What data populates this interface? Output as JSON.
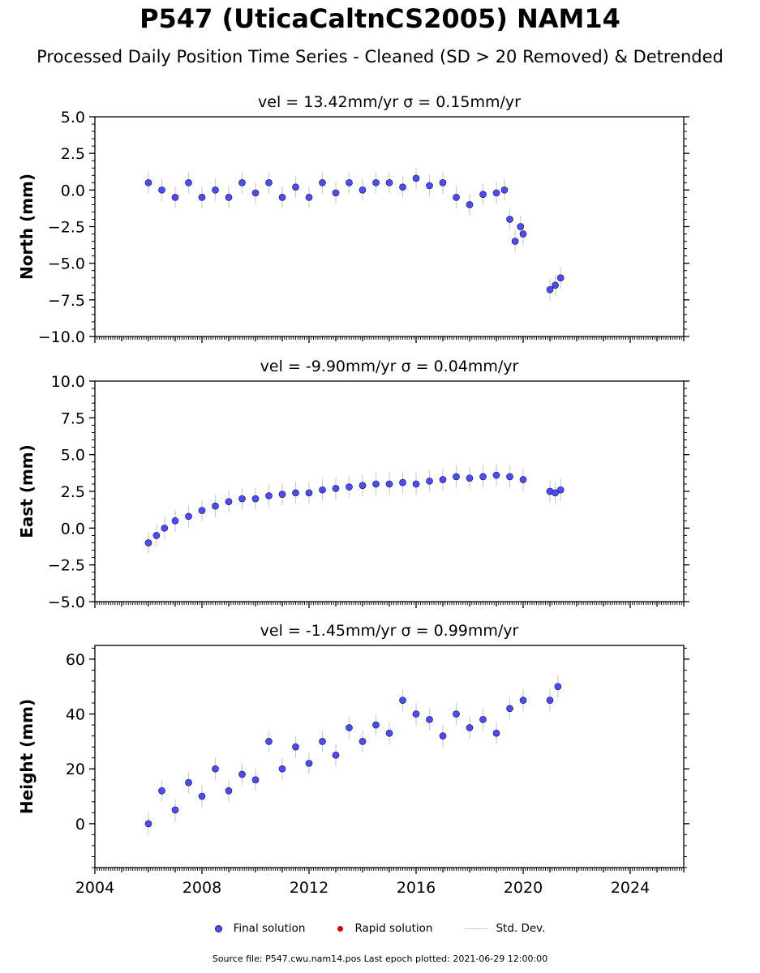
{
  "title": "P547 (UticaCaltnCS2005) NAM14",
  "subtitle": "Processed Daily Position Time Series - Cleaned (SD > 20 Removed) & Detrended",
  "legend": {
    "final": "Final solution",
    "rapid": "Rapid solution",
    "std": "Std. Dev."
  },
  "footer": "Source file: P547.cwu.nam14.pos  Last epoch plotted: 2021-06-29 12:00:00",
  "colors": {
    "final": "#4b4bff",
    "rapid": "#e00000",
    "std": "#c8c8c8"
  },
  "chart_data": [
    {
      "type": "scatter",
      "title": "vel = 13.42mm/yr   σ = 0.15mm/yr",
      "ylabel": "North (mm)",
      "xlim": [
        2004,
        2026
      ],
      "ylim": [
        -10,
        5
      ],
      "yticks": [
        5.0,
        2.5,
        0.0,
        -2.5,
        -5.0,
        -7.5,
        -10.0
      ],
      "ytick_labels": [
        "5.0",
        "2.5",
        "0.0",
        "−2.5",
        "−5.0",
        "−7.5",
        "−10.0"
      ],
      "series": [
        {
          "x": [
            2006.0,
            2006.5,
            2007.0,
            2007.5,
            2008.0,
            2008.5,
            2009.0,
            2009.5,
            2010.0,
            2010.5,
            2011.0,
            2011.5,
            2012.0,
            2012.5,
            2013.0,
            2013.5,
            2014.0,
            2014.5,
            2015.0,
            2015.5,
            2016.0,
            2016.5,
            2017.0,
            2017.5,
            2018.0,
            2018.5,
            2019.0,
            2019.3,
            2019.5,
            2019.7,
            2019.9,
            2020.0,
            2021.0,
            2021.2,
            2021.4
          ],
          "y": [
            0.5,
            0.0,
            -0.5,
            0.5,
            -0.5,
            0.0,
            -0.5,
            0.5,
            -0.2,
            0.5,
            -0.5,
            0.2,
            -0.5,
            0.5,
            -0.2,
            0.5,
            0.0,
            0.5,
            0.5,
            0.2,
            0.8,
            0.3,
            0.5,
            -0.5,
            -1.0,
            -0.3,
            -0.2,
            0.0,
            -2.0,
            -3.5,
            -2.5,
            -3.0,
            -6.8,
            -6.5,
            -6.0
          ]
        }
      ]
    },
    {
      "type": "scatter",
      "title": "vel = -9.90mm/yr   σ = 0.04mm/yr",
      "ylabel": "East (mm)",
      "xlim": [
        2004,
        2026
      ],
      "ylim": [
        -5,
        10
      ],
      "yticks": [
        10.0,
        7.5,
        5.0,
        2.5,
        0.0,
        -2.5,
        -5.0
      ],
      "ytick_labels": [
        "10.0",
        "7.5",
        "5.0",
        "2.5",
        "0.0",
        "−2.5",
        "−5.0"
      ],
      "series": [
        {
          "x": [
            2006.0,
            2006.3,
            2006.6,
            2007.0,
            2007.5,
            2008.0,
            2008.5,
            2009.0,
            2009.5,
            2010.0,
            2010.5,
            2011.0,
            2011.5,
            2012.0,
            2012.5,
            2013.0,
            2013.5,
            2014.0,
            2014.5,
            2015.0,
            2015.5,
            2016.0,
            2016.5,
            2017.0,
            2017.5,
            2018.0,
            2018.5,
            2019.0,
            2019.5,
            2020.0,
            2021.0,
            2021.2,
            2021.4
          ],
          "y": [
            -1.0,
            -0.5,
            0.0,
            0.5,
            0.8,
            1.2,
            1.5,
            1.8,
            2.0,
            2.0,
            2.2,
            2.3,
            2.4,
            2.4,
            2.6,
            2.7,
            2.8,
            2.9,
            3.0,
            3.0,
            3.1,
            3.0,
            3.2,
            3.3,
            3.5,
            3.4,
            3.5,
            3.6,
            3.5,
            3.3,
            2.5,
            2.4,
            2.6
          ]
        }
      ]
    },
    {
      "type": "scatter",
      "title": "vel = -1.45mm/yr   σ = 0.99mm/yr",
      "ylabel": "Height (mm)",
      "xlim": [
        2004,
        2026
      ],
      "ylim": [
        -16,
        65
      ],
      "yticks": [
        60,
        40,
        20,
        0
      ],
      "ytick_labels": [
        "60",
        "40",
        "20",
        "0"
      ],
      "xticks": [
        2004,
        2008,
        2012,
        2016,
        2020,
        2024
      ],
      "xtick_labels": [
        "2004",
        "2008",
        "2012",
        "2016",
        "2020",
        "2024"
      ],
      "series": [
        {
          "x": [
            2006.0,
            2006.5,
            2007.0,
            2007.5,
            2008.0,
            2008.5,
            2009.0,
            2009.5,
            2010.0,
            2010.5,
            2011.0,
            2011.5,
            2012.0,
            2012.5,
            2013.0,
            2013.5,
            2014.0,
            2014.5,
            2015.0,
            2015.5,
            2016.0,
            2016.5,
            2017.0,
            2017.5,
            2018.0,
            2018.5,
            2019.0,
            2019.5,
            2020.0,
            2021.0,
            2021.3
          ],
          "y": [
            0,
            12,
            5,
            15,
            10,
            20,
            12,
            18,
            16,
            30,
            20,
            28,
            22,
            30,
            25,
            35,
            30,
            36,
            33,
            45,
            40,
            38,
            32,
            40,
            35,
            38,
            33,
            42,
            45,
            45,
            50
          ]
        }
      ]
    }
  ]
}
